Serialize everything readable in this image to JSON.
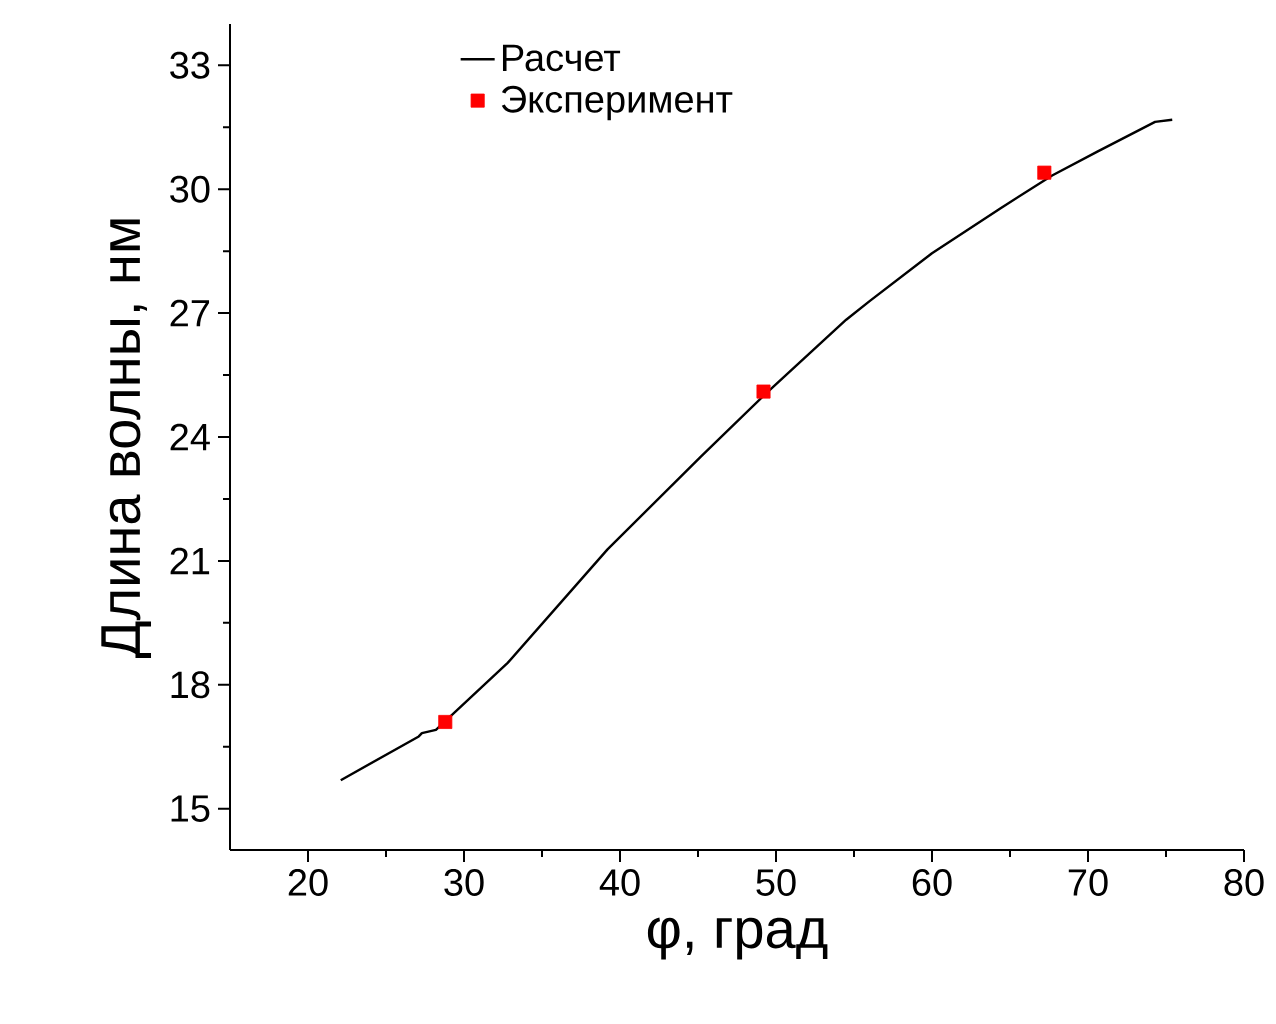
{
  "chart_data": {
    "type": "line",
    "xlabel": "φ, град",
    "ylabel": "Длина волны, нм",
    "xlim": [
      15,
      80
    ],
    "ylim": [
      14,
      34
    ],
    "xticks": [
      20,
      30,
      40,
      50,
      60,
      70,
      80
    ],
    "yticks": [
      15,
      18,
      21,
      24,
      27,
      30,
      33
    ],
    "legend": "top left",
    "grid": false,
    "series": [
      {
        "name": "Расчет",
        "color": "#000000",
        "marker": "none",
        "line_style": "solid",
        "x": [
          22.1,
          27.1,
          27.3,
          28.2,
          32.8,
          39.2,
          45.2,
          49.4,
          54.5,
          56.0,
          60.0,
          64.4,
          67.7,
          70.6,
          74.3,
          75.4
        ],
        "values": [
          15.69,
          16.75,
          16.83,
          16.91,
          18.53,
          21.28,
          23.53,
          25.07,
          26.84,
          27.29,
          28.45,
          29.54,
          30.33,
          30.91,
          31.63,
          31.68
        ]
      },
      {
        "name": "Эксперимент",
        "type": "scatter",
        "color": "#ff0000",
        "marker": "square",
        "x": [
          28.8,
          49.2,
          67.2
        ],
        "values": [
          17.1,
          25.1,
          30.4
        ]
      }
    ]
  }
}
